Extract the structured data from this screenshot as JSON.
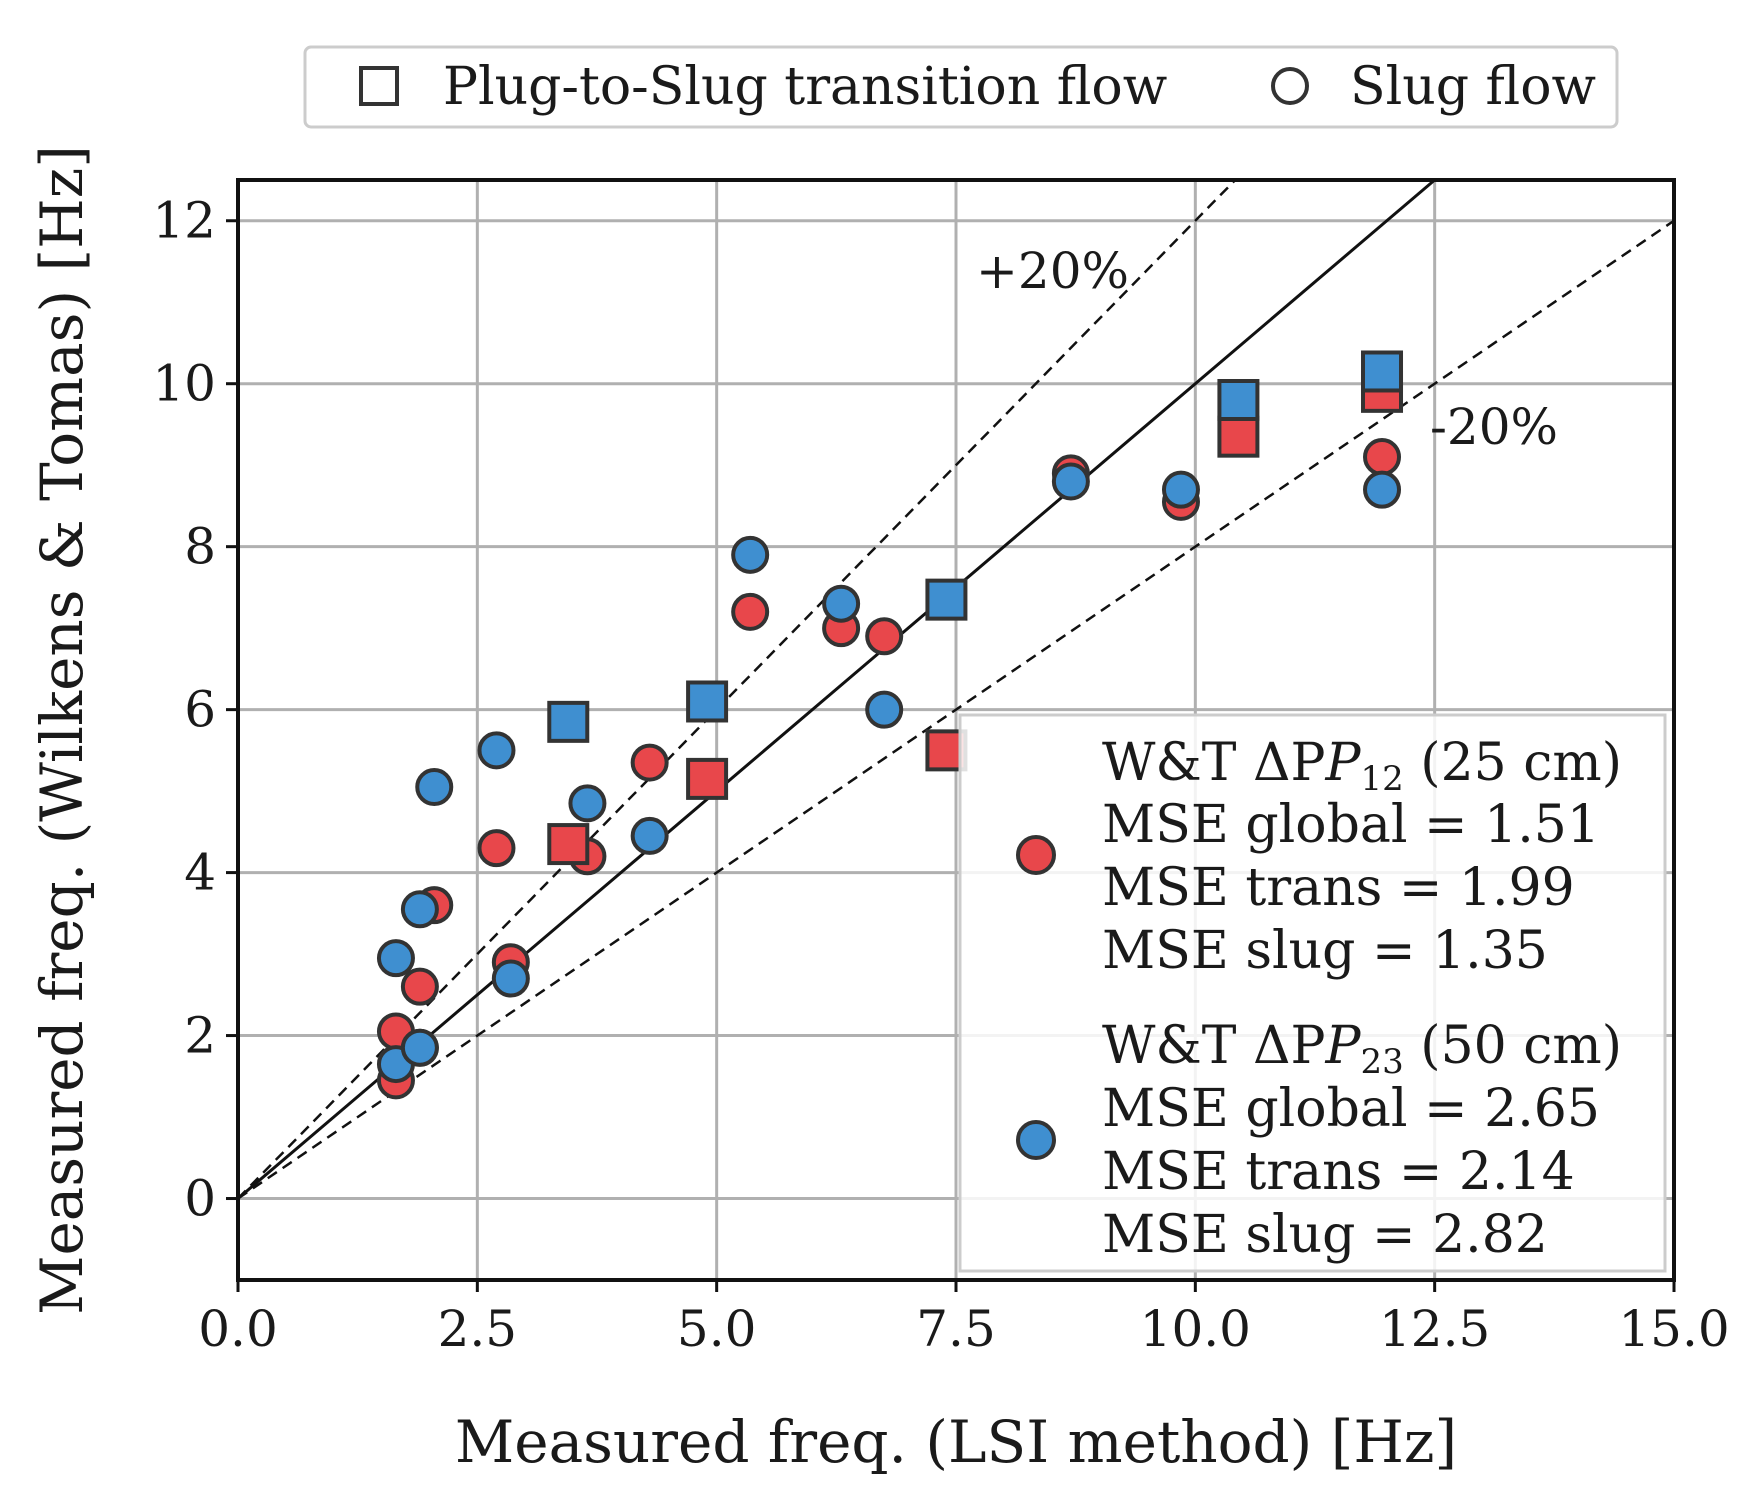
{
  "chart_data": {
    "type": "scatter",
    "xlabel": "Measured freq. (LSI method) [Hz]",
    "ylabel": "Measured freq. (Wilkens & Tomas) [Hz]",
    "xlim": [
      0,
      15
    ],
    "ylim": [
      -1,
      12.5
    ],
    "xticks": [
      "0.0",
      "2.5",
      "5.0",
      "7.5",
      "10.0",
      "12.5",
      "15.0"
    ],
    "yticks": [
      "0",
      "2",
      "4",
      "6",
      "8",
      "10",
      "12"
    ],
    "grid": true,
    "colors": {
      "red": "#e8474b",
      "blue": "#3f8fd0",
      "edge": "#333333"
    },
    "reference_lines": [
      {
        "name": "identity",
        "slope": 1.0,
        "style": "solid"
      },
      {
        "name": "+20%",
        "slope": 1.2,
        "style": "dashed",
        "label": "+20%"
      },
      {
        "name": "-20%",
        "slope": 0.8,
        "style": "dashed",
        "label": "-20%"
      }
    ],
    "shape_legend": [
      {
        "marker": "square",
        "label": "Plug-to-Slug transition flow"
      },
      {
        "marker": "circle",
        "label": "Slug flow"
      }
    ],
    "series": [
      {
        "name": "W&T ΔP12 (25 cm)",
        "title_main": "W&T ΔP",
        "title_sub": "12",
        "title_rest": " (25 cm)",
        "color": "#e8474b",
        "stats": [
          "MSE global = 1.51",
          "MSE trans = 1.99",
          "MSE slug = 1.35"
        ],
        "transition": [
          [
            3.45,
            4.35
          ],
          [
            4.9,
            5.15
          ],
          [
            7.4,
            5.5
          ],
          [
            10.45,
            9.35
          ],
          [
            11.95,
            9.9
          ]
        ],
        "slug": [
          [
            1.65,
            1.45
          ],
          [
            1.65,
            2.05
          ],
          [
            1.9,
            1.85
          ],
          [
            1.9,
            2.6
          ],
          [
            2.05,
            3.6
          ],
          [
            2.7,
            4.3
          ],
          [
            2.85,
            2.9
          ],
          [
            3.65,
            4.2
          ],
          [
            4.3,
            5.35
          ],
          [
            5.35,
            7.2
          ],
          [
            6.3,
            7.0
          ],
          [
            6.75,
            6.9
          ],
          [
            8.7,
            8.9
          ],
          [
            9.85,
            8.55
          ],
          [
            11.95,
            9.1
          ]
        ]
      },
      {
        "name": "W&T ΔP23 (50 cm)",
        "title_main": "W&T ΔP",
        "title_sub": "23",
        "title_rest": " (50 cm)",
        "color": "#3f8fd0",
        "stats": [
          "MSE global = 2.65",
          "MSE trans = 2.14",
          "MSE slug = 2.82"
        ],
        "transition": [
          [
            3.45,
            5.85
          ],
          [
            4.9,
            6.1
          ],
          [
            7.4,
            7.35
          ],
          [
            10.45,
            9.8
          ],
          [
            11.95,
            10.15
          ]
        ],
        "slug": [
          [
            1.65,
            1.65
          ],
          [
            1.65,
            2.95
          ],
          [
            1.9,
            1.85
          ],
          [
            1.9,
            3.55
          ],
          [
            2.05,
            5.05
          ],
          [
            2.7,
            5.5
          ],
          [
            2.85,
            2.7
          ],
          [
            3.65,
            4.85
          ],
          [
            4.3,
            4.45
          ],
          [
            5.35,
            7.9
          ],
          [
            6.3,
            7.3
          ],
          [
            6.75,
            6.0
          ],
          [
            8.7,
            8.8
          ],
          [
            9.85,
            8.7
          ],
          [
            11.95,
            8.7
          ]
        ]
      }
    ]
  }
}
